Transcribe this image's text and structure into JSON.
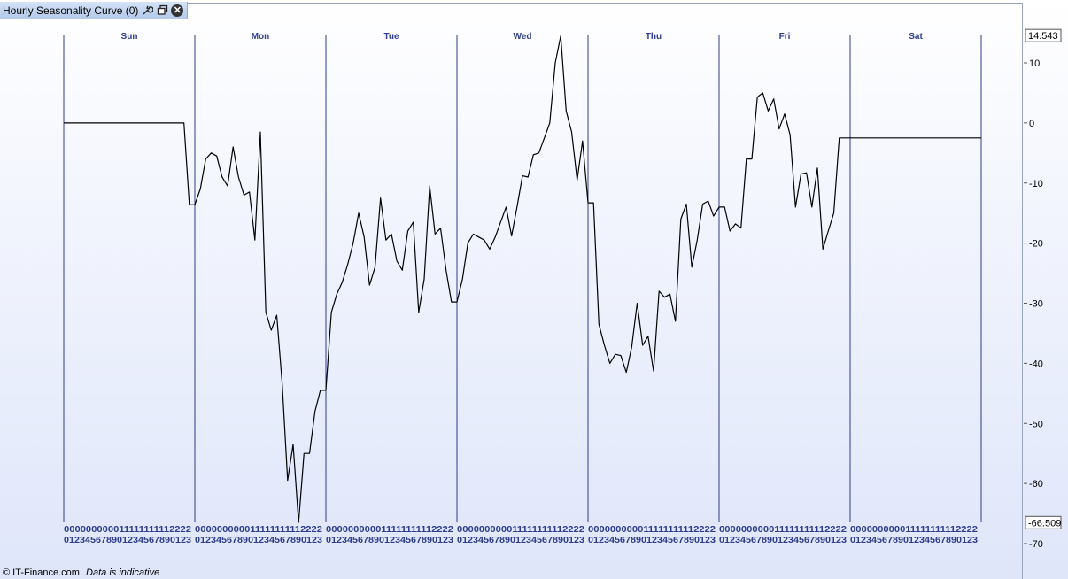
{
  "window": {
    "title": "Hourly Seasonality Curve (0)",
    "icons": [
      "wrench-icon",
      "restore-window-icon",
      "close-icon"
    ]
  },
  "footer": {
    "copyright": "© IT-Finance.com",
    "disclaimer": "Data is indicative"
  },
  "colors": {
    "line": "#000000",
    "day_separator": "#2e3d8c",
    "label": "#2e3d8c"
  },
  "chart_data": {
    "type": "line",
    "title": "Hourly Seasonality Curve (0)",
    "days": [
      "Sun",
      "Mon",
      "Tue",
      "Wed",
      "Thu",
      "Fri",
      "Sat"
    ],
    "hours_per_day": 24,
    "ylim": [
      -72,
      16
    ],
    "yticks": [
      10,
      0,
      -10,
      -20,
      -30,
      -40,
      -50,
      -60,
      -70
    ],
    "ytick_labels": [
      "10",
      "0",
      "-10",
      "-20",
      "-30",
      "-40",
      "-50",
      "-60",
      "-70"
    ],
    "max_value": 14.543,
    "min_value": -66.509,
    "max_label": "14.543",
    "min_label": "-66.509",
    "hour_tick_tens": [
      "0 0 0 0 0 0 0 0 0 0 1 1 1 1 1 1 1 1 1 1 2 2 2 2",
      "0 0 0 0 0 0 0 0 0 0 1 1 1 1 1 1 1 1 1 1 2 2 2 2",
      "0 0 0 0 0 0 0 0 0 0 1 1 1 1 1 1 1 1 1 1 2 2 2 2",
      "0 0 0 0 0 0 0 0 0 0 1 1 1 1 1 1 1 1 1 1 2 2 2 2",
      "0 0 0 0 0 0 0 0 0 0 1 1 1 1 1 1 1 1 1 1 2 2 2 2",
      "0 0 0 0 0 0 0 0 0 0 1 1 1 1 1 1 1 1 1 1 2 2 2 2",
      "0 0 0 0 0 0 0 0 0 0 1 1 1 1 1 1 1 1 1 1 2 2 2 2"
    ],
    "hour_tick_ones": "0 1 2 3 4 5 6 7 8 9 0 1 2 3 4 5 6 7 8 9 0 1 2 3",
    "series": [
      {
        "values": [
          0,
          0,
          0,
          0,
          0,
          0,
          0,
          0,
          0,
          0,
          0,
          0,
          0,
          0,
          0,
          0,
          0,
          0,
          0,
          0,
          0,
          0,
          0,
          -13.6,
          -13.6,
          -11,
          -6,
          -5,
          -5.5,
          -9,
          -10.5,
          -4,
          -9,
          -12,
          -11.5,
          -19.5,
          -1.5,
          -31.5,
          -34.5,
          -32,
          -43.5,
          -59.5,
          -53.5,
          -66.5,
          -55,
          -55,
          -48,
          -44.5,
          -44.5,
          -31.5,
          -28.5,
          -26.5,
          -23.5,
          -20,
          -15,
          -19,
          -27,
          -24,
          -12.5,
          -19.5,
          -18.5,
          -23,
          -24.5,
          -18,
          -16.5,
          -31.5,
          -26,
          -10.5,
          -18.5,
          -17.5,
          -24.5,
          -29.8,
          -29.8,
          -26,
          -20,
          -18.5,
          -19,
          -19.5,
          -21,
          -19,
          -16.5,
          -14,
          -18.8,
          -14,
          -8.8,
          -9,
          -5.3,
          -5,
          -2.5,
          0,
          10,
          14.5,
          2,
          -1.5,
          -9.5,
          -3,
          -13.3,
          -13.3,
          -33.5,
          -37,
          -40,
          -38.5,
          -38.7,
          -41.5,
          -37.3,
          -30,
          -37,
          -35.5,
          -41.3,
          -28,
          -29,
          -28.5,
          -33,
          -16,
          -13.5,
          -24,
          -19.5,
          -13.5,
          -13,
          -15.5,
          -14,
          -14,
          -18,
          -16.8,
          -17.5,
          -6,
          -6,
          4.3,
          5,
          2,
          4,
          -1,
          1.5,
          -2,
          -14,
          -8.5,
          -8.3,
          -14,
          -7.5,
          -21,
          -18,
          -15,
          -2.5,
          -2.5,
          -2.5,
          -2.5,
          -2.5,
          -2.5,
          -2.5,
          -2.5,
          -2.5,
          -2.5,
          -2.5,
          -2.5,
          -2.5,
          -2.5,
          -2.5,
          -2.5,
          -2.5,
          -2.5,
          -2.5,
          -2.5,
          -2.5,
          -2.5,
          -2.5,
          -2.5,
          -2.5,
          -2.5,
          -2.5
        ]
      }
    ]
  }
}
